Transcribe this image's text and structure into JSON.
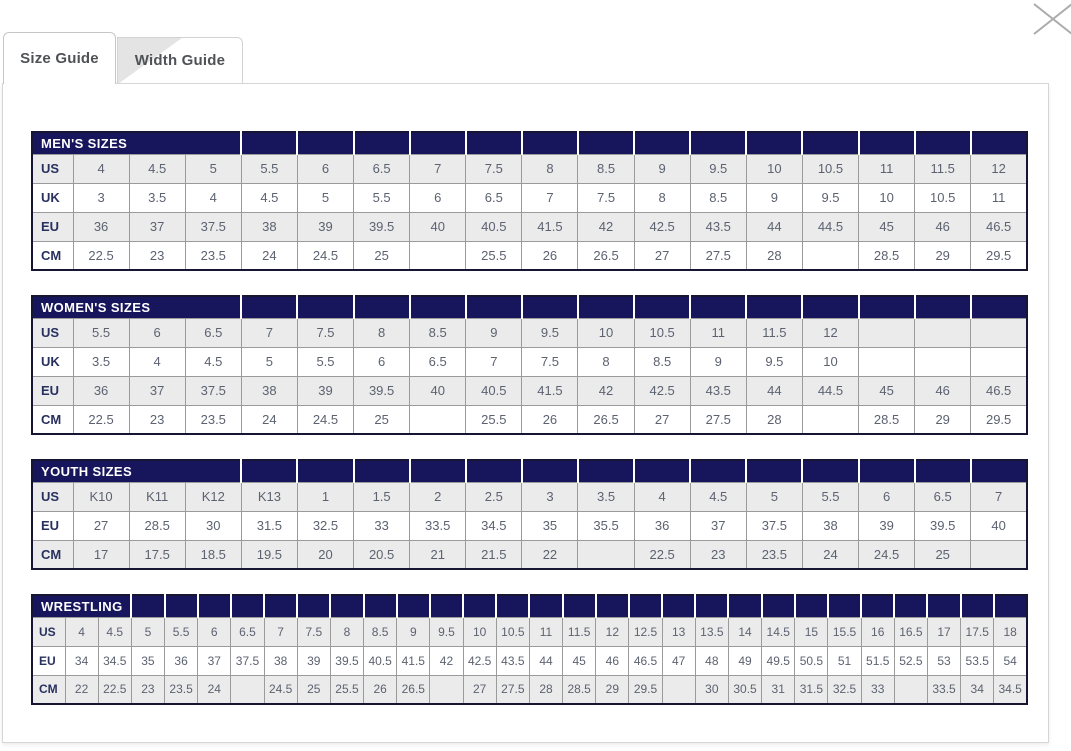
{
  "modal": {
    "close_icon": "close-x",
    "colors": {
      "header_bg": "#17155c",
      "header_text": "#ffffff",
      "row_stripe": "#ebebeb",
      "label_text": "#28305f",
      "value_text": "#5c6270",
      "cell_border": "#9b9b9b",
      "table_outer_border": "#161632",
      "panel_border": "#d6d6d6",
      "tab_text": "#4f5257",
      "close_icon_color": "#ababab"
    }
  },
  "tabs": [
    {
      "id": "size-guide",
      "label": "Size Guide",
      "active": true
    },
    {
      "id": "width-guide",
      "label": "Width Guide",
      "active": false
    }
  ],
  "tables": [
    {
      "name": "mens-sizes",
      "title": "MEN'S SIZES",
      "title_colspan": 4,
      "compact": false,
      "rows": [
        {
          "label": "US",
          "values": [
            "4",
            "4.5",
            "5",
            "5.5",
            "6",
            "6.5",
            "7",
            "7.5",
            "8",
            "8.5",
            "9",
            "9.5",
            "10",
            "10.5",
            "11",
            "11.5",
            "12"
          ]
        },
        {
          "label": "UK",
          "values": [
            "3",
            "3.5",
            "4",
            "4.5",
            "5",
            "5.5",
            "6",
            "6.5",
            "7",
            "7.5",
            "8",
            "8.5",
            "9",
            "9.5",
            "10",
            "10.5",
            "11"
          ]
        },
        {
          "label": "EU",
          "values": [
            "36",
            "37",
            "37.5",
            "38",
            "39",
            "39.5",
            "40",
            "40.5",
            "41.5",
            "42",
            "42.5",
            "43.5",
            "44",
            "44.5",
            "45",
            "46",
            "46.5"
          ]
        },
        {
          "label": "CM",
          "values": [
            "22.5",
            "23",
            "23.5",
            "24",
            "24.5",
            "25",
            "",
            "25.5",
            "26",
            "26.5",
            "27",
            "27.5",
            "28",
            "",
            "28.5",
            "29",
            "29.5"
          ]
        }
      ]
    },
    {
      "name": "womens-sizes",
      "title": "WOMEN'S SIZES",
      "title_colspan": 4,
      "compact": false,
      "rows": [
        {
          "label": "US",
          "values": [
            "5.5",
            "6",
            "6.5",
            "7",
            "7.5",
            "8",
            "8.5",
            "9",
            "9.5",
            "10",
            "10.5",
            "11",
            "11.5",
            "12",
            "",
            "",
            ""
          ]
        },
        {
          "label": "UK",
          "values": [
            "3.5",
            "4",
            "4.5",
            "5",
            "5.5",
            "6",
            "6.5",
            "7",
            "7.5",
            "8",
            "8.5",
            "9",
            "9.5",
            "10",
            "",
            "",
            ""
          ]
        },
        {
          "label": "EU",
          "values": [
            "36",
            "37",
            "37.5",
            "38",
            "39",
            "39.5",
            "40",
            "40.5",
            "41.5",
            "42",
            "42.5",
            "43.5",
            "44",
            "44.5",
            "45",
            "46",
            "46.5"
          ]
        },
        {
          "label": "CM",
          "values": [
            "22.5",
            "23",
            "23.5",
            "24",
            "24.5",
            "25",
            "",
            "25.5",
            "26",
            "26.5",
            "27",
            "27.5",
            "28",
            "",
            "28.5",
            "29",
            "29.5"
          ]
        }
      ]
    },
    {
      "name": "youth-sizes",
      "title": "YOUTH SIZES",
      "title_colspan": 4,
      "compact": false,
      "rows": [
        {
          "label": "US",
          "values": [
            "K10",
            "K11",
            "K12",
            "K13",
            "1",
            "1.5",
            "2",
            "2.5",
            "3",
            "3.5",
            "4",
            "4.5",
            "5",
            "5.5",
            "6",
            "6.5",
            "7"
          ]
        },
        {
          "label": "EU",
          "values": [
            "27",
            "28.5",
            "30",
            "31.5",
            "32.5",
            "33",
            "33.5",
            "34.5",
            "35",
            "35.5",
            "36",
            "37",
            "37.5",
            "38",
            "39",
            "39.5",
            "40"
          ]
        },
        {
          "label": "CM",
          "values": [
            "17",
            "17.5",
            "18.5",
            "19.5",
            "20",
            "20.5",
            "21",
            "21.5",
            "22",
            "",
            "22.5",
            "23",
            "23.5",
            "24",
            "24.5",
            "25",
            ""
          ]
        }
      ]
    },
    {
      "name": "wrestling",
      "title": "WRESTLING",
      "title_colspan": 3,
      "compact": true,
      "rows": [
        {
          "label": "US",
          "values": [
            "4",
            "4.5",
            "5",
            "5.5",
            "6",
            "6.5",
            "7",
            "7.5",
            "8",
            "8.5",
            "9",
            "9.5",
            "10",
            "10.5",
            "11",
            "11.5",
            "12",
            "12.5",
            "13",
            "13.5",
            "14",
            "14.5",
            "15",
            "15.5",
            "16",
            "16.5",
            "17",
            "17.5",
            "18"
          ]
        },
        {
          "label": "EU",
          "values": [
            "34",
            "34.5",
            "35",
            "36",
            "37",
            "37.5",
            "38",
            "39",
            "39.5",
            "40.5",
            "41.5",
            "42",
            "42.5",
            "43.5",
            "44",
            "45",
            "46",
            "46.5",
            "47",
            "48",
            "49",
            "49.5",
            "50.5",
            "51",
            "51.5",
            "52.5",
            "53",
            "53.5",
            "54"
          ]
        },
        {
          "label": "CM",
          "values": [
            "22",
            "22.5",
            "23",
            "23.5",
            "24",
            "",
            "24.5",
            "25",
            "25.5",
            "26",
            "26.5",
            "",
            "27",
            "27.5",
            "28",
            "28.5",
            "29",
            "29.5",
            "",
            "30",
            "30.5",
            "31",
            "31.5",
            "32.5",
            "33",
            "",
            "33.5",
            "34",
            "34.5"
          ]
        }
      ]
    }
  ]
}
